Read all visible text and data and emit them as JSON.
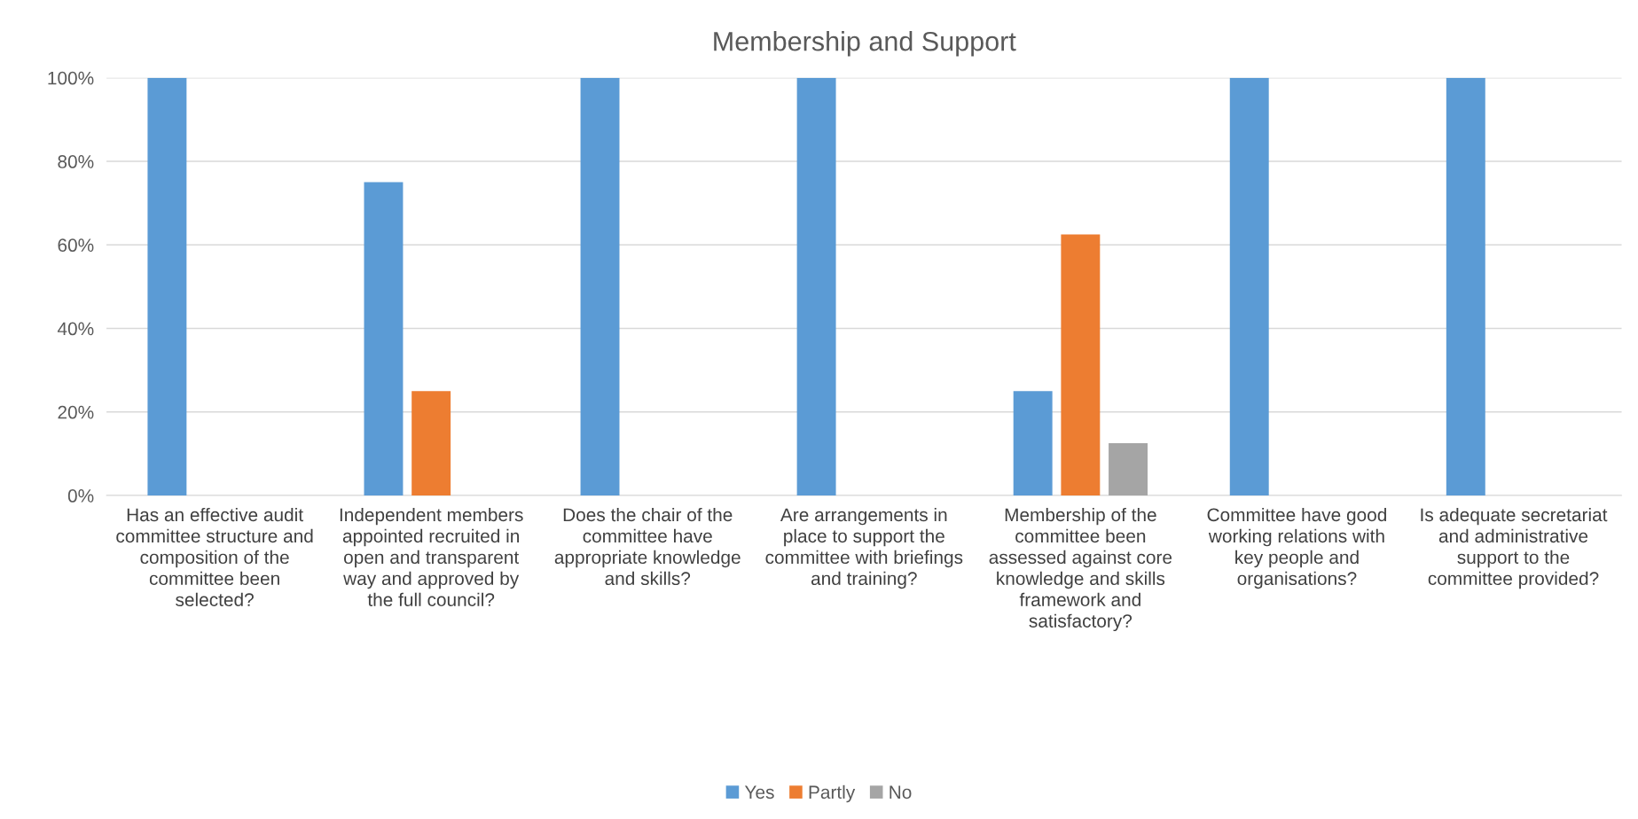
{
  "chart_data": {
    "type": "bar",
    "title": "Membership and Support",
    "categories": [
      "Has an effective audit\ncommittee structure and\ncomposition of the\ncommittee been\nselected?",
      "Independent members\nappointed recruited in\nopen and transparent\nway and approved by\nthe full council?",
      "Does the chair of the\ncommittee have\nappropriate knowledge\nand skills?",
      "Are arrangements in\nplace to support the\ncommittee with briefings\nand training?",
      "Membership of the\ncommittee been\nassessed against core\nknowledge and skills\nframework and\nsatisfactory?",
      "Committee have good\nworking relations with\nkey people and\norganisations?",
      "Is adequate secretariat\nand administrative\nsupport to the\ncommittee provided?"
    ],
    "series": [
      {
        "name": "Yes",
        "color": "#5b9bd5",
        "values": [
          100,
          75,
          100,
          100,
          25,
          100,
          100
        ]
      },
      {
        "name": "Partly",
        "color": "#ed7d31",
        "values": [
          0,
          25,
          0,
          0,
          62.5,
          0,
          0
        ]
      },
      {
        "name": "No",
        "color": "#a5a5a5",
        "values": [
          0,
          0,
          0,
          0,
          12.5,
          0,
          0
        ]
      }
    ],
    "ylim": [
      0,
      100
    ],
    "yticks": [
      {
        "value": 0,
        "label": "0%"
      },
      {
        "value": 20,
        "label": "20%"
      },
      {
        "value": 40,
        "label": "40%"
      },
      {
        "value": 60,
        "label": "60%"
      },
      {
        "value": 80,
        "label": "80%"
      },
      {
        "value": 100,
        "label": "100%"
      }
    ],
    "grid": "y",
    "legend": "bottom"
  }
}
